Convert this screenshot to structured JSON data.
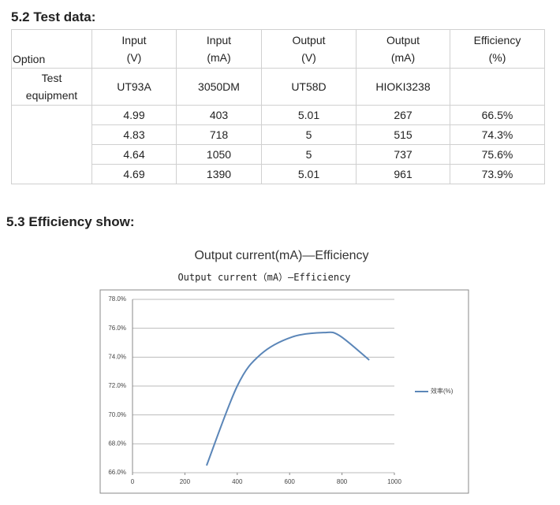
{
  "sections": {
    "test_data": "5.2 Test data:",
    "efficiency": "5.3 Efficiency show:"
  },
  "table": {
    "header": [
      [
        "Option"
      ],
      [
        "Input",
        "(V)"
      ],
      [
        "Input",
        "(mA)"
      ],
      [
        "Output",
        "(V)"
      ],
      [
        "Output",
        "(mA)"
      ],
      [
        "Efficiency",
        "(%)"
      ]
    ],
    "equipment": [
      [
        "Test",
        "equipment"
      ],
      "UT93A",
      "3050DM",
      "UT58D",
      "HIOKI3238"
    ],
    "rows": [
      [
        "4.99",
        "403",
        "5.01",
        "267",
        "66.5%"
      ],
      [
        "4.83",
        "718",
        "5",
        "515",
        "74.3%"
      ],
      [
        "4.64",
        "1050",
        "5",
        "737",
        "75.6%"
      ],
      [
        "4.69",
        "1390",
        "5.01",
        "961",
        "73.9%"
      ]
    ]
  },
  "chart_data": {
    "type": "line",
    "title": "Output current(mA)—Efficiency",
    "subtitle": "Output current（mA）—Efficiency",
    "x": [
      283,
      400,
      490,
      610,
      730,
      790,
      904
    ],
    "series": [
      {
        "name": "效率(%)",
        "color": "#5b86b8",
        "values": [
          66.5,
          72.0,
          74.2,
          75.4,
          75.7,
          75.5,
          73.8
        ]
      }
    ],
    "xlim": [
      0,
      1000
    ],
    "xticks": [
      0,
      200,
      400,
      600,
      800,
      1000
    ],
    "ylim": [
      66,
      78
    ],
    "yticks": [
      {
        "value": 66,
        "label": "66.0%"
      },
      {
        "value": 68,
        "label": "68.0%"
      },
      {
        "value": 70,
        "label": "70.0%"
      },
      {
        "value": 72,
        "label": "72.0%"
      },
      {
        "value": 74,
        "label": "74.0%"
      },
      {
        "value": 76,
        "label": "76.0%"
      },
      {
        "value": 78,
        "label": "78.0%"
      }
    ],
    "grid": true,
    "legend": "right"
  }
}
